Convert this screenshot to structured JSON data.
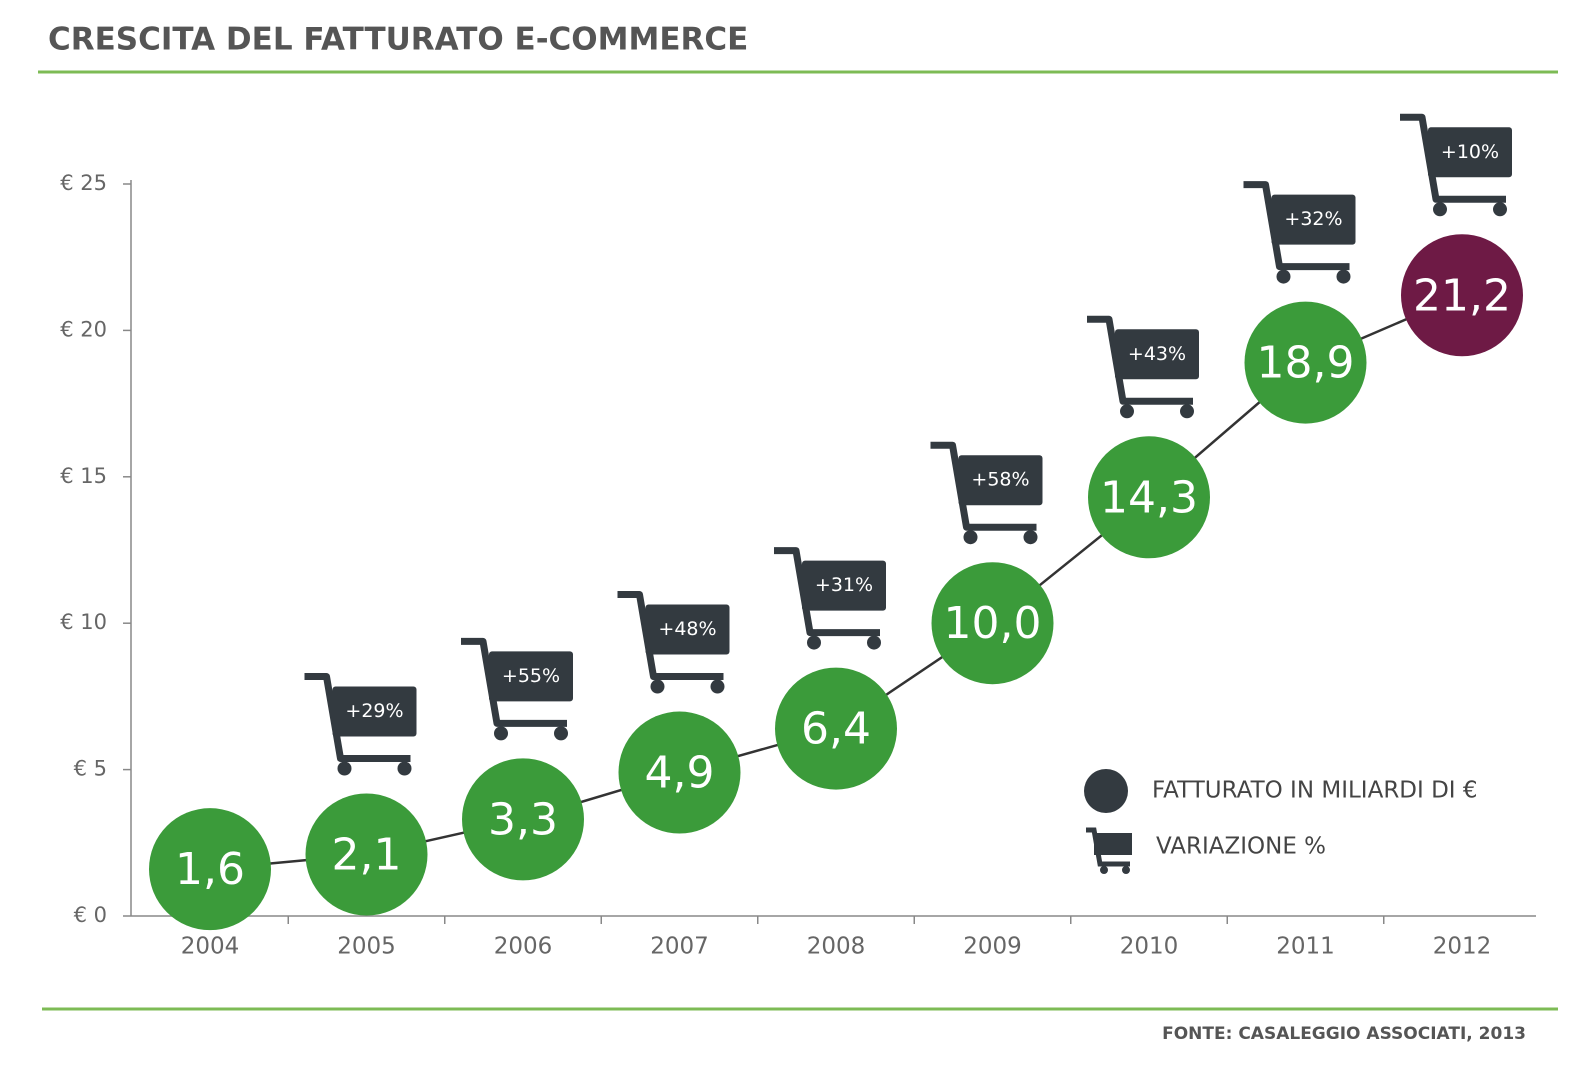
{
  "chart_data": {
    "type": "line",
    "title": "CRESCITA DEL FATTURATO E-COMMERCE",
    "source": "FONTE: CASALEGGIO ASSOCIATI, 2013",
    "categories": [
      "2004",
      "2005",
      "2006",
      "2007",
      "2008",
      "2009",
      "2010",
      "2011",
      "2012"
    ],
    "series": [
      {
        "name": "FATTURATO IN MILIARDI DI €",
        "color": "#3b9b3a",
        "legend_color": "#333a40",
        "point_colors": [
          "#3b9b3a",
          "#3b9b3a",
          "#3b9b3a",
          "#3b9b3a",
          "#3b9b3a",
          "#3b9b3a",
          "#3b9b3a",
          "#3b9b3a",
          "#6e1a45"
        ],
        "values": [
          1.6,
          2.1,
          3.3,
          4.9,
          6.4,
          10.0,
          14.3,
          18.9,
          21.2
        ],
        "value_labels": [
          "1,6",
          "2,1",
          "3,3",
          "4,9",
          "6,4",
          "10,0",
          "14,3",
          "18,9",
          "21,2"
        ]
      },
      {
        "name": "VARIAZIONE %",
        "color": "#333a40",
        "values": [
          null,
          29,
          55,
          48,
          31,
          58,
          43,
          32,
          10
        ],
        "value_labels": [
          null,
          "+29%",
          "+55%",
          "+48%",
          "+31%",
          "+58%",
          "+43%",
          "+32%",
          "+10%"
        ]
      }
    ],
    "ylim": [
      0,
      25
    ],
    "yticks": [
      {
        "value": 0,
        "label": "€ 0"
      },
      {
        "value": 5,
        "label": "€ 5"
      },
      {
        "value": 10,
        "label": "€ 10"
      },
      {
        "value": 15,
        "label": "€ 15"
      },
      {
        "value": 20,
        "label": "€ 20"
      },
      {
        "value": 25,
        "label": "€ 25"
      }
    ],
    "grid": false
  }
}
